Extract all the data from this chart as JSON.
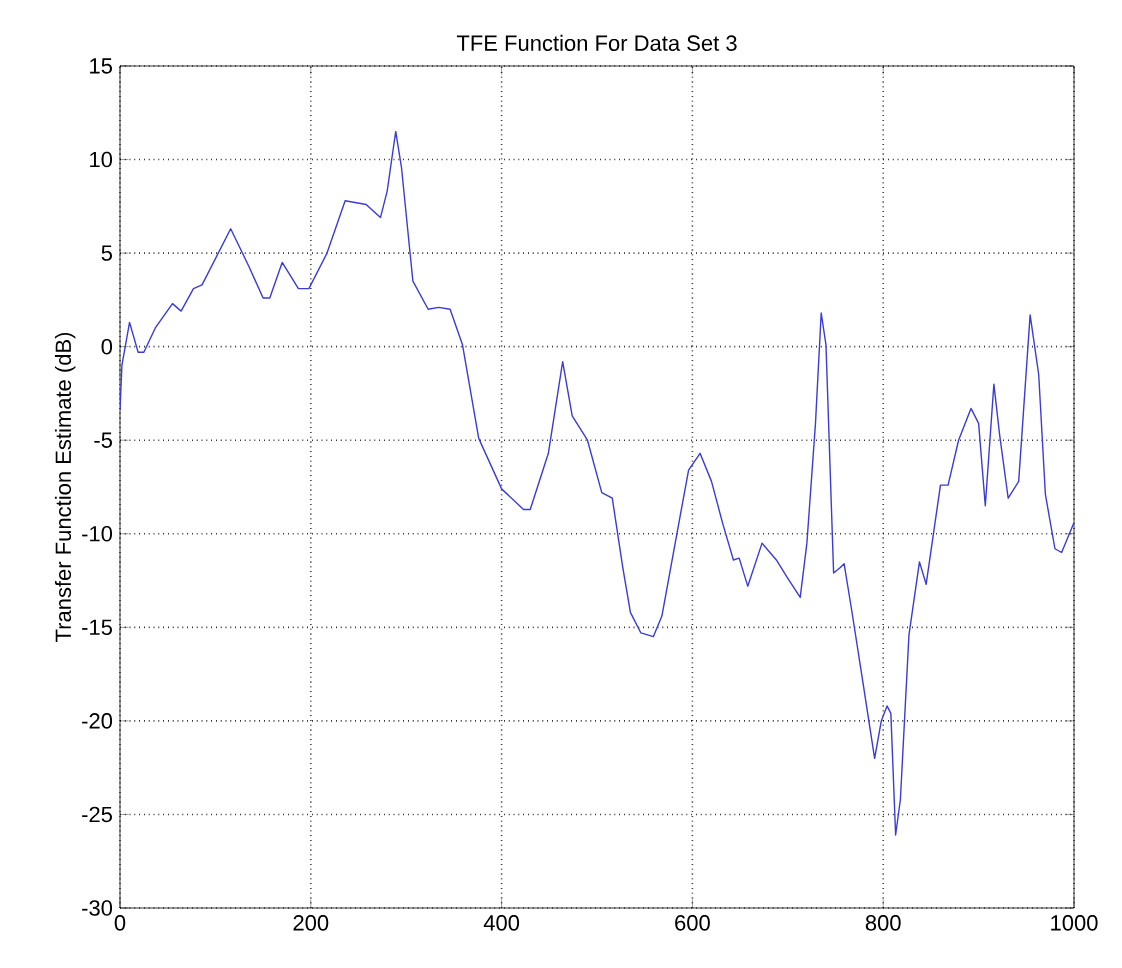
{
  "chart_data": {
    "type": "line",
    "title": "TFE Function For Data Set 3",
    "ylabel": "Transfer Function Estimate (dB)",
    "xlim": [
      0,
      1000
    ],
    "ylim": [
      -30,
      15
    ],
    "xticks": [
      0,
      200,
      400,
      600,
      800,
      1000
    ],
    "yticks": [
      -30,
      -25,
      -20,
      -15,
      -10,
      -5,
      0,
      5,
      10,
      15
    ],
    "grid": true,
    "series": [
      {
        "color": "#3b3bd6",
        "x": [
          0,
          2,
          10,
          19,
          25,
          37,
          55,
          64,
          77,
          86,
          116,
          135,
          150,
          157,
          170,
          187,
          198,
          217,
          236,
          258,
          273,
          280,
          289,
          295,
          307,
          323,
          334,
          346,
          359,
          376,
          400,
          423,
          430,
          449,
          464,
          474,
          490,
          505,
          516,
          527,
          535,
          546,
          559,
          568,
          583,
          596,
          608,
          620,
          632,
          643,
          649,
          658,
          673,
          688,
          699,
          713,
          720,
          729,
          735,
          740,
          748,
          755,
          759,
          767,
          778,
          791,
          798,
          804,
          808,
          813,
          818,
          827,
          838,
          845,
          860,
          868,
          879,
          892,
          900,
          907,
          916,
          922,
          931,
          942,
          954,
          963,
          970,
          980,
          987,
          1000
        ],
        "values": [
          -3.4,
          -1,
          1.3,
          -0.3,
          -0.3,
          1,
          2.3,
          1.9,
          3.1,
          3.3,
          6.3,
          4.3,
          2.6,
          2.6,
          4.5,
          3.1,
          3.1,
          5,
          7.8,
          7.6,
          6.9,
          8.3,
          11.5,
          9.6,
          3.5,
          2,
          2.1,
          2,
          0.1,
          -4.9,
          -7.6,
          -8.7,
          -8.7,
          -5.7,
          -0.8,
          -3.7,
          -5,
          -7.8,
          -8.1,
          -11.8,
          -14.2,
          -15.3,
          -15.5,
          -14.4,
          -10.2,
          -6.6,
          -5.7,
          -7.2,
          -9.5,
          -11.4,
          -11.3,
          -12.8,
          -10.5,
          -11.4,
          -12.3,
          -13.4,
          -10.5,
          -4.1,
          1.8,
          0.1,
          -12.1,
          -11.8,
          -11.6,
          -14.1,
          -17.7,
          -22,
          -20,
          -19.2,
          -19.6,
          -26.1,
          -24.2,
          -15.4,
          -11.5,
          -12.7,
          -7.4,
          -7.4,
          -5,
          -3.3,
          -4.1,
          -8.5,
          -2,
          -4.7,
          -8.1,
          -7.2,
          1.7,
          -1.5,
          -7.9,
          -10.8,
          -11,
          -9.4
        ]
      }
    ]
  }
}
